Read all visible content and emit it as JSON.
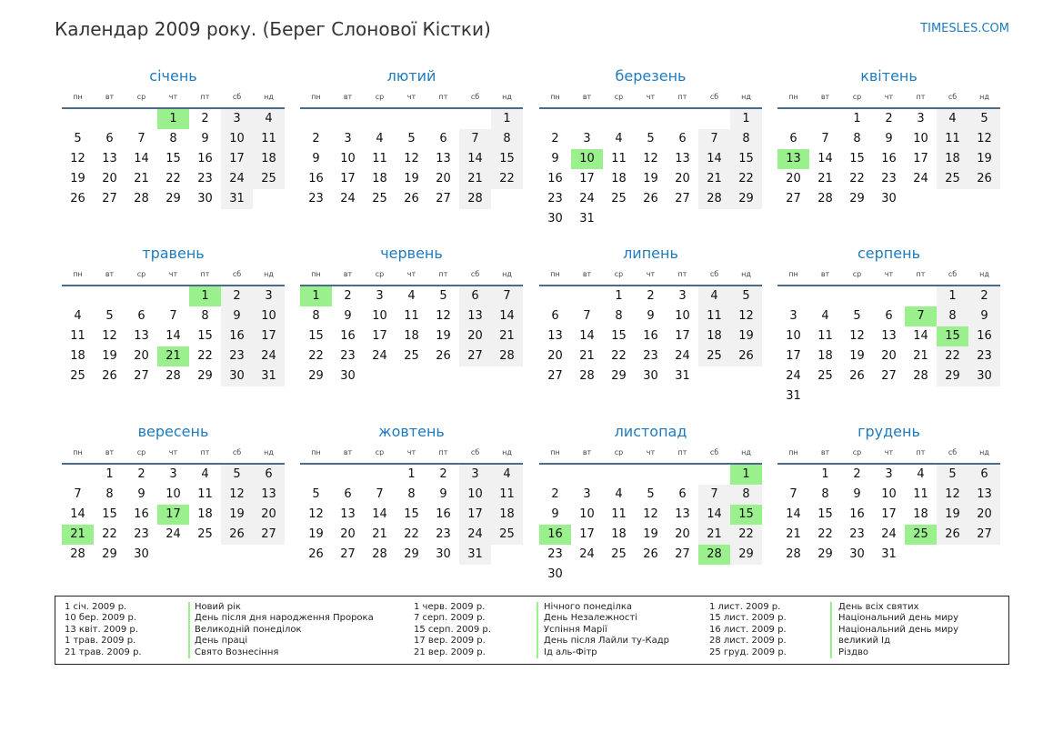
{
  "title": "Календар 2009 року. (Берег Слонової Кістки)",
  "site": "TIMESLES.COM",
  "weekday_labels": [
    "пн",
    "вт",
    "ср",
    "чт",
    "пт",
    "сб",
    "нд"
  ],
  "colors": {
    "accent": "#1f7bbd",
    "holiday": "#9bf08e",
    "weekend": "#f1f1f1"
  },
  "months": [
    {
      "name": "січень",
      "offset": 3,
      "days": 31,
      "holidays": [
        1
      ]
    },
    {
      "name": "лютий",
      "offset": 6,
      "days": 28,
      "holidays": []
    },
    {
      "name": "березень",
      "offset": 6,
      "days": 31,
      "holidays": [
        10
      ]
    },
    {
      "name": "квітень",
      "offset": 2,
      "days": 30,
      "holidays": [
        13
      ]
    },
    {
      "name": "травень",
      "offset": 4,
      "days": 31,
      "holidays": [
        1,
        21
      ]
    },
    {
      "name": "червень",
      "offset": 0,
      "days": 30,
      "holidays": [
        1
      ]
    },
    {
      "name": "липень",
      "offset": 2,
      "days": 31,
      "holidays": []
    },
    {
      "name": "серпень",
      "offset": 5,
      "days": 31,
      "holidays": [
        7,
        15
      ]
    },
    {
      "name": "вересень",
      "offset": 1,
      "days": 30,
      "holidays": [
        17,
        21
      ]
    },
    {
      "name": "жовтень",
      "offset": 3,
      "days": 31,
      "holidays": []
    },
    {
      "name": "листопад",
      "offset": 6,
      "days": 30,
      "holidays": [
        1,
        15,
        16,
        28
      ]
    },
    {
      "name": "грудень",
      "offset": 1,
      "days": 31,
      "holidays": [
        25
      ]
    }
  ],
  "holidays_list": [
    [
      {
        "date": "1 січ. 2009 р.",
        "name": "Новий рік"
      },
      {
        "date": "10 бер. 2009 р.",
        "name": "День після дня народження Пророка"
      },
      {
        "date": "13 квіт. 2009 р.",
        "name": "Великодній понеділок"
      },
      {
        "date": "1 трав. 2009 р.",
        "name": "День праці"
      },
      {
        "date": "21 трав. 2009 р.",
        "name": "Свято Вознесіння"
      }
    ],
    [
      {
        "date": "1 черв. 2009 р.",
        "name": "Нічного понеділка"
      },
      {
        "date": "7 серп. 2009 р.",
        "name": "День Незалежності"
      },
      {
        "date": "15 серп. 2009 р.",
        "name": "Успіння Марії"
      },
      {
        "date": "17 вер. 2009 р.",
        "name": "День після Лайли ту-Кадр"
      },
      {
        "date": "21 вер. 2009 р.",
        "name": "Ід аль-Фітр"
      }
    ],
    [
      {
        "date": "1 лист. 2009 р.",
        "name": "День всіх святих"
      },
      {
        "date": "15 лист. 2009 р.",
        "name": "Національний день миру"
      },
      {
        "date": "16 лист. 2009 р.",
        "name": "Національний день миру"
      },
      {
        "date": "28 лист. 2009 р.",
        "name": "великий Ід"
      },
      {
        "date": "25 груд. 2009 р.",
        "name": "Різдво"
      }
    ]
  ]
}
